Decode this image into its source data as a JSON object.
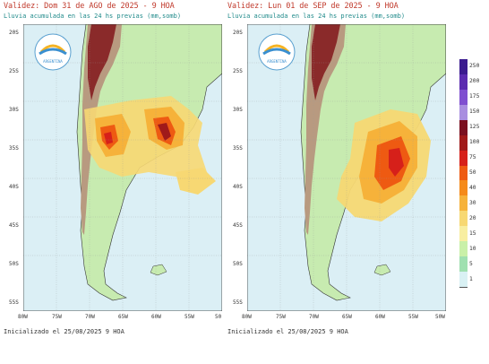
{
  "panels": [
    {
      "title": "Validez: Dom 31 de AGO de 2025 - 9 HOA",
      "subtitle": "Lluvia acumulada en las 24 hs previas (mm,somb)",
      "init_label": "Inicializado el 25/08/2025 9 HOA",
      "lat_labels": [
        "20S",
        "25S",
        "30S",
        "35S",
        "40S",
        "45S",
        "50S",
        "55S"
      ],
      "lon_labels": [
        "80W",
        "75W",
        "70W",
        "65W",
        "60W",
        "55W",
        "50"
      ],
      "logo_text": "ARGENTINA"
    },
    {
      "title": "Validez: Lun 01 de SEP de 2025 - 9 HOA",
      "subtitle": "Lluvia acumulada en las 24 hs previas (mm,somb)",
      "init_label": "Inicializado el 25/08/2025 9 HOA",
      "lat_labels": [
        "20S",
        "25S",
        "30S",
        "35S",
        "40S",
        "45S",
        "50S",
        "55S"
      ],
      "lon_labels": [
        "80W",
        "75W",
        "70W",
        "65W",
        "60W",
        "55W",
        "50W"
      ],
      "logo_text": "ARGENTINA"
    }
  ],
  "colorbar": {
    "labels": [
      "250",
      "200",
      "175",
      "150",
      "125",
      "100",
      "75",
      "50",
      "40",
      "30",
      "20",
      "15",
      "10",
      "5",
      "1"
    ],
    "colors": [
      "#3b1b8f",
      "#5b2bb0",
      "#7f4fd0",
      "#a98ee0",
      "#7a1020",
      "#a01a1a",
      "#d6201a",
      "#ee5a12",
      "#f58a1a",
      "#f6b23a",
      "#f7d873",
      "#f8eea0",
      "#c9f0a8",
      "#9fe0b0",
      "#d9f1f4"
    ]
  },
  "colors": {
    "ocean": "#dbeff5",
    "land": "#c7ebb0",
    "andes_low": "#b89a80",
    "andes_high": "#8a2a2a"
  }
}
